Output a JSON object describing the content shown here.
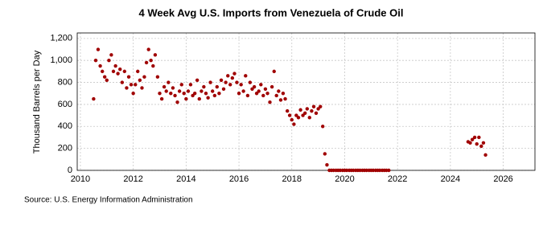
{
  "chart_data": {
    "type": "scatter",
    "title": "4 Week Avg U.S. Imports from Venezuela of Crude Oil",
    "y_label": "Thousand Barrels per Day",
    "source": "Source: U.S. Energy Information Administration",
    "color": "#a00000",
    "grid": true,
    "xlim": [
      2009.88,
      2027.2
    ],
    "ylim": [
      0,
      1250
    ],
    "xticks": [
      2010,
      2012,
      2014,
      2016,
      2018,
      2020,
      2022,
      2024,
      2026
    ],
    "yticks": [
      0,
      200,
      400,
      600,
      800,
      {
        "value": 1000,
        "label": "1,000"
      },
      {
        "value": 1200,
        "label": "1,200"
      }
    ],
    "x": [
      2010.5,
      2010.58,
      2010.67,
      2010.75,
      2010.83,
      2010.92,
      2011.0,
      2011.08,
      2011.17,
      2011.25,
      2011.33,
      2011.42,
      2011.5,
      2011.58,
      2011.67,
      2011.75,
      2011.83,
      2011.92,
      2012.0,
      2012.08,
      2012.17,
      2012.25,
      2012.33,
      2012.42,
      2012.5,
      2012.58,
      2012.67,
      2012.75,
      2012.83,
      2012.92,
      2013.0,
      2013.08,
      2013.17,
      2013.25,
      2013.33,
      2013.42,
      2013.5,
      2013.58,
      2013.67,
      2013.75,
      2013.83,
      2013.92,
      2014.0,
      2014.08,
      2014.17,
      2014.25,
      2014.33,
      2014.42,
      2014.5,
      2014.58,
      2014.67,
      2014.75,
      2014.83,
      2014.92,
      2015.0,
      2015.08,
      2015.17,
      2015.25,
      2015.33,
      2015.42,
      2015.5,
      2015.58,
      2015.67,
      2015.75,
      2015.83,
      2015.92,
      2016.0,
      2016.08,
      2016.17,
      2016.25,
      2016.33,
      2016.42,
      2016.5,
      2016.58,
      2016.67,
      2016.75,
      2016.83,
      2016.92,
      2017.0,
      2017.08,
      2017.17,
      2017.25,
      2017.33,
      2017.42,
      2017.5,
      2017.58,
      2017.67,
      2017.75,
      2017.83,
      2017.92,
      2018.0,
      2018.08,
      2018.17,
      2018.25,
      2018.33,
      2018.42,
      2018.5,
      2018.58,
      2018.67,
      2018.75,
      2018.83,
      2018.92,
      2019.0,
      2019.08,
      2019.17,
      2019.25,
      2019.33,
      2019.42,
      2019.5,
      2019.58,
      2019.67,
      2019.75,
      2019.83,
      2019.92,
      2020.0,
      2020.08,
      2020.17,
      2020.25,
      2020.33,
      2020.42,
      2020.5,
      2020.58,
      2020.67,
      2020.75,
      2020.83,
      2020.92,
      2021.0,
      2021.08,
      2021.17,
      2021.25,
      2021.33,
      2021.42,
      2021.5,
      2021.58,
      2021.67,
      2024.67,
      2024.75,
      2024.83,
      2024.92,
      2025.0,
      2025.08,
      2025.17,
      2025.25,
      2025.33
    ],
    "values": [
      650,
      1000,
      1100,
      950,
      900,
      850,
      820,
      1000,
      1050,
      900,
      950,
      880,
      920,
      800,
      900,
      750,
      850,
      780,
      700,
      780,
      900,
      820,
      750,
      850,
      980,
      1100,
      1000,
      950,
      1050,
      850,
      700,
      650,
      760,
      720,
      800,
      700,
      750,
      680,
      620,
      720,
      780,
      700,
      650,
      720,
      780,
      680,
      700,
      820,
      650,
      720,
      760,
      700,
      660,
      800,
      720,
      680,
      760,
      700,
      820,
      740,
      800,
      860,
      780,
      840,
      880,
      800,
      700,
      780,
      720,
      860,
      680,
      800,
      740,
      760,
      700,
      720,
      780,
      680,
      740,
      700,
      620,
      760,
      900,
      680,
      720,
      640,
      700,
      650,
      540,
      500,
      460,
      420,
      500,
      480,
      550,
      500,
      520,
      560,
      480,
      540,
      580,
      520,
      560,
      580,
      400,
      150,
      50,
      0,
      0,
      0,
      0,
      0,
      0,
      0,
      0,
      0,
      0,
      0,
      0,
      0,
      0,
      0,
      0,
      0,
      0,
      0,
      0,
      0,
      0,
      0,
      0,
      0,
      0,
      0,
      0,
      260,
      250,
      280,
      300,
      240,
      300,
      220,
      250,
      140
    ]
  }
}
